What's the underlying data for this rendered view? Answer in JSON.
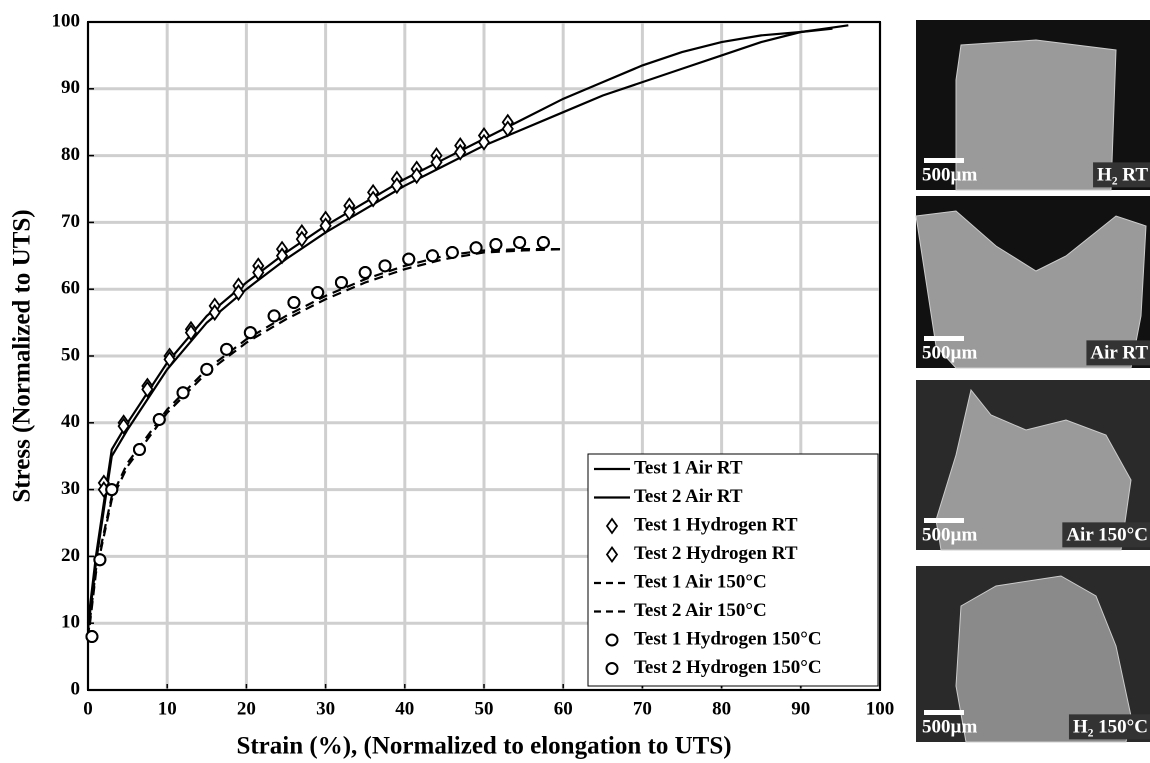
{
  "chart_data": {
    "type": "line",
    "xlabel": "Strain (%), (Normalized to elongation to UTS)",
    "ylabel": "Stress (Normalized to UTS)",
    "xlim": [
      0,
      100
    ],
    "ylim": [
      0,
      100
    ],
    "xticks": [
      0,
      10,
      20,
      30,
      40,
      50,
      60,
      70,
      80,
      90,
      100
    ],
    "yticks": [
      0,
      10,
      20,
      30,
      40,
      50,
      60,
      70,
      80,
      90,
      100
    ],
    "grid": true,
    "legend": "lower right",
    "series": [
      {
        "name": "Test 1 Air RT",
        "color": "#000000",
        "style": "solid",
        "marker": null,
        "x": [
          0,
          1,
          3,
          5,
          10,
          15,
          20,
          25,
          30,
          35,
          40,
          45,
          50,
          55,
          60,
          65,
          70,
          75,
          80,
          85,
          90,
          93,
          96
        ],
        "values": [
          10,
          20,
          36,
          40,
          49,
          56,
          61,
          65.5,
          69.5,
          73,
          76.5,
          79.5,
          82.5,
          85.5,
          88.5,
          91,
          93.5,
          95.5,
          97,
          98,
          98.5,
          99,
          99.5
        ]
      },
      {
        "name": "Test 2 Air RT",
        "color": "#000000",
        "style": "solid",
        "marker": null,
        "x": [
          0,
          1,
          3,
          5,
          10,
          15,
          20,
          25,
          30,
          35,
          40,
          45,
          50,
          55,
          60,
          65,
          70,
          75,
          80,
          85,
          90,
          94
        ],
        "values": [
          9,
          19,
          35,
          39,
          48,
          55,
          60,
          64.5,
          68.5,
          72,
          75.5,
          78.5,
          81.5,
          84,
          86.5,
          89,
          91,
          93,
          95,
          97,
          98.5,
          99
        ]
      },
      {
        "name": "Test 1 Hydrogen RT",
        "color": "#000000",
        "style": "none",
        "marker": "diamond",
        "x": [
          2,
          4.5,
          7.5,
          10.3,
          13,
          16,
          19,
          21.5,
          24.5,
          27,
          30,
          33,
          36,
          39,
          41.5,
          44,
          47,
          50,
          53
        ],
        "values": [
          31,
          40,
          45.5,
          50,
          54,
          57.5,
          60.5,
          63.5,
          66,
          68.5,
          70.5,
          72.5,
          74.5,
          76.5,
          78,
          80,
          81.5,
          83,
          85
        ]
      },
      {
        "name": "Test 2 Hydrogen RT",
        "color": "#000000",
        "style": "none",
        "marker": "diamond",
        "x": [
          2,
          4.5,
          7.5,
          10.3,
          13,
          16,
          19,
          21.5,
          24.5,
          27,
          30,
          33,
          36,
          39,
          41.5,
          44,
          47,
          50,
          53
        ],
        "values": [
          30,
          39.5,
          45,
          49.5,
          53.5,
          56.5,
          59.5,
          62.5,
          65,
          67.5,
          69.5,
          71.5,
          73.5,
          75.5,
          77,
          79,
          80.5,
          82,
          84
        ]
      },
      {
        "name": "Test 1 Air 150°C",
        "color": "#000000",
        "style": "dashed",
        "marker": null,
        "x": [
          0,
          1,
          3,
          5,
          10,
          15,
          20,
          25,
          30,
          35,
          40,
          45,
          50,
          55,
          60
        ],
        "values": [
          8,
          18,
          29,
          34,
          42,
          48,
          52.5,
          56,
          59,
          61.5,
          63.5,
          65,
          65.8,
          66,
          66
        ]
      },
      {
        "name": "Test 2 Air 150°C",
        "color": "#000000",
        "style": "dashed",
        "marker": null,
        "x": [
          0,
          1,
          3,
          5,
          10,
          15,
          20,
          25,
          30,
          35,
          40,
          45,
          50,
          55,
          60
        ],
        "values": [
          7.5,
          17.5,
          28.5,
          33.5,
          41.5,
          47.5,
          52,
          55.5,
          58.5,
          61,
          63,
          64.5,
          65.5,
          65.8,
          66
        ]
      },
      {
        "name": "Test 1 Hydrogen 150°C",
        "color": "#000000",
        "style": "none",
        "marker": "circle",
        "x": [
          0.5,
          1.5,
          3,
          6.5,
          9,
          12,
          15,
          17.5,
          20.5,
          23.5,
          26,
          29,
          32,
          35,
          37.5,
          40.5,
          43.5,
          46,
          49,
          51.5,
          54.5,
          57.5
        ],
        "values": [
          8,
          19.5,
          30,
          36,
          40.5,
          44.5,
          48,
          51,
          53.5,
          56,
          58,
          59.5,
          61,
          62.5,
          63.5,
          64.5,
          65,
          65.5,
          66.2,
          66.7,
          67,
          67
        ]
      },
      {
        "name": "Test 2 Hydrogen 150°C",
        "color": "#000000",
        "style": "none",
        "marker": "circle",
        "x": [
          0.5,
          1.5,
          3,
          6.5,
          9,
          12,
          15,
          17.5,
          20.5,
          23.5,
          26,
          29,
          32,
          35,
          37.5,
          40.5,
          43.5,
          46,
          49,
          51.5,
          54.5,
          57.5
        ],
        "values": [
          8,
          19.5,
          30,
          36,
          40.5,
          44.5,
          48,
          51,
          53.5,
          56,
          58,
          59.5,
          61,
          62.5,
          63.5,
          64.5,
          65,
          65.5,
          66.2,
          66.7,
          67,
          67
        ]
      }
    ]
  },
  "images": [
    {
      "scale_label": "500µm",
      "label": "H₂ RT"
    },
    {
      "scale_label": "500µm",
      "label": "Air RT"
    },
    {
      "scale_label": "500µm",
      "label": "Air 150°C"
    },
    {
      "scale_label": "500µm",
      "label": "H₂ 150°C"
    }
  ]
}
